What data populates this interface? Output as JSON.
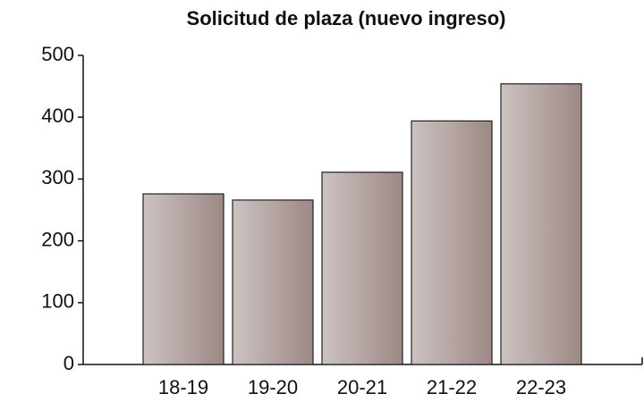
{
  "chart_data": {
    "type": "bar",
    "title": "Solicitud de plaza (nuevo ingreso)",
    "categories": [
      "18-19",
      "19-20",
      "20-21",
      "21-22",
      "22-23"
    ],
    "values": [
      276,
      266,
      311,
      394,
      454
    ],
    "gradient": [
      "#ccc3c1",
      "#9d8885"
    ],
    "ylim": [
      0,
      500
    ],
    "yticks": [
      0,
      100,
      200,
      300,
      400,
      500
    ],
    "grid": false
  }
}
